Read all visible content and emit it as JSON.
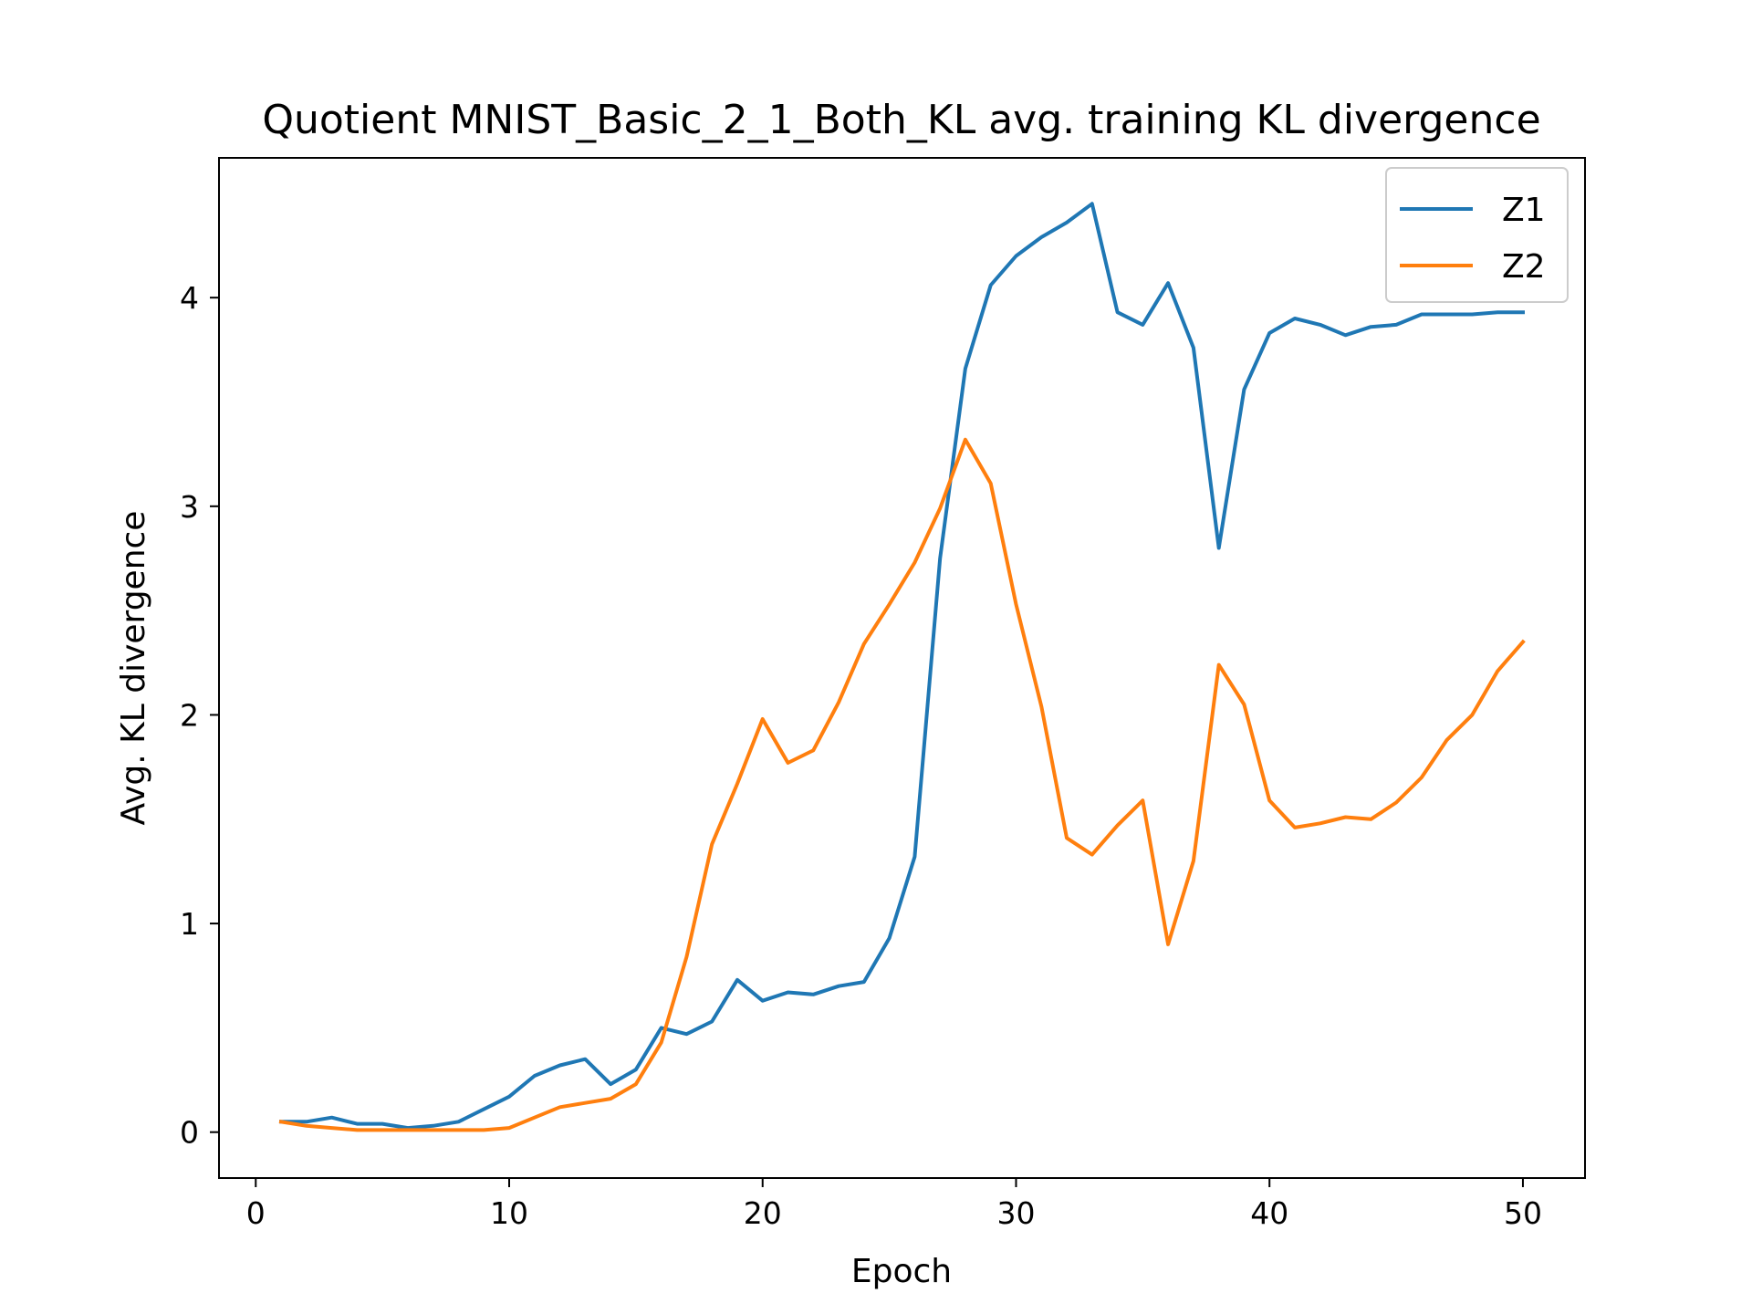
{
  "chart_data": {
    "type": "line",
    "title": "Quotient MNIST_Basic_2_1_Both_KL avg. training KL divergence",
    "xlabel": "Epoch",
    "ylabel": "Avg. KL divergence",
    "xlim": [
      -1.45,
      52.45
    ],
    "ylim": [
      -0.22,
      4.67
    ],
    "xticks": [
      0,
      10,
      20,
      30,
      40,
      50
    ],
    "yticks": [
      0,
      1,
      2,
      3,
      4
    ],
    "grid": false,
    "legend_position": "top-right",
    "x": [
      1,
      2,
      3,
      4,
      5,
      6,
      7,
      8,
      9,
      10,
      11,
      12,
      13,
      14,
      15,
      16,
      17,
      18,
      19,
      20,
      21,
      22,
      23,
      24,
      25,
      26,
      27,
      28,
      29,
      30,
      31,
      32,
      33,
      34,
      35,
      36,
      37,
      38,
      39,
      40,
      41,
      42,
      43,
      44,
      45,
      46,
      47,
      48,
      49,
      50
    ],
    "series": [
      {
        "name": "Z1",
        "color": "#1f77b4",
        "values": [
          0.05,
          0.05,
          0.07,
          0.04,
          0.04,
          0.02,
          0.03,
          0.05,
          0.11,
          0.17,
          0.27,
          0.32,
          0.35,
          0.23,
          0.3,
          0.5,
          0.47,
          0.53,
          0.73,
          0.63,
          0.67,
          0.66,
          0.7,
          0.72,
          0.93,
          1.32,
          2.75,
          3.66,
          4.06,
          4.2,
          4.29,
          4.36,
          4.45,
          3.93,
          3.87,
          4.07,
          3.76,
          2.8,
          3.56,
          3.83,
          3.9,
          3.87,
          3.82,
          3.86,
          3.87,
          3.92,
          3.92,
          3.92,
          3.93,
          3.93
        ]
      },
      {
        "name": "Z2",
        "color": "#ff7f0e",
        "values": [
          0.05,
          0.03,
          0.02,
          0.01,
          0.01,
          0.01,
          0.01,
          0.01,
          0.01,
          0.02,
          0.07,
          0.12,
          0.14,
          0.16,
          0.23,
          0.43,
          0.84,
          1.38,
          1.67,
          1.98,
          1.77,
          1.83,
          2.06,
          2.34,
          2.53,
          2.73,
          2.99,
          3.32,
          3.11,
          2.53,
          2.04,
          1.41,
          1.33,
          1.47,
          1.59,
          0.9,
          1.3,
          2.24,
          2.05,
          1.59,
          1.46,
          1.48,
          1.51,
          1.5,
          1.58,
          1.7,
          1.88,
          2.0,
          2.21,
          2.35
        ]
      }
    ]
  }
}
